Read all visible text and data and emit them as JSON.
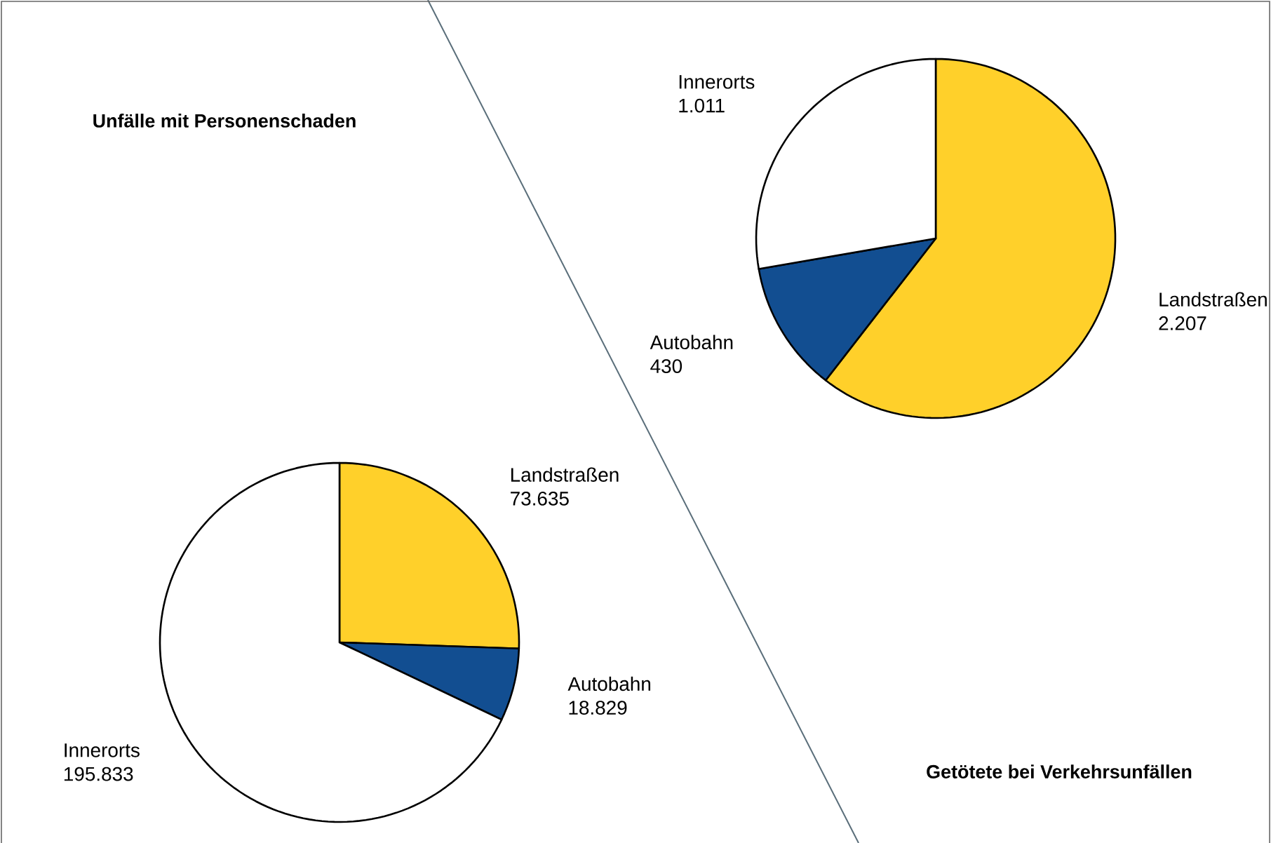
{
  "chart_data": [
    {
      "type": "pie",
      "title": "Unfälle mit Personenschaden",
      "categories": [
        "Landstraßen",
        "Autobahn",
        "Innerorts"
      ],
      "values": [
        73635,
        18829,
        195833
      ],
      "value_labels": [
        "73.635",
        "18.829",
        "195.833"
      ],
      "colors": [
        "#ffd02a",
        "#124e91",
        "#ffffff"
      ]
    },
    {
      "type": "pie",
      "title": "Getötete bei Verkehrsunfällen",
      "categories": [
        "Landstraßen",
        "Autobahn",
        "Innerorts"
      ],
      "values": [
        2207,
        430,
        1011
      ],
      "value_labels": [
        "2.207",
        "430",
        "1.011"
      ],
      "colors": [
        "#ffd02a",
        "#124e91",
        "#ffffff"
      ]
    }
  ]
}
